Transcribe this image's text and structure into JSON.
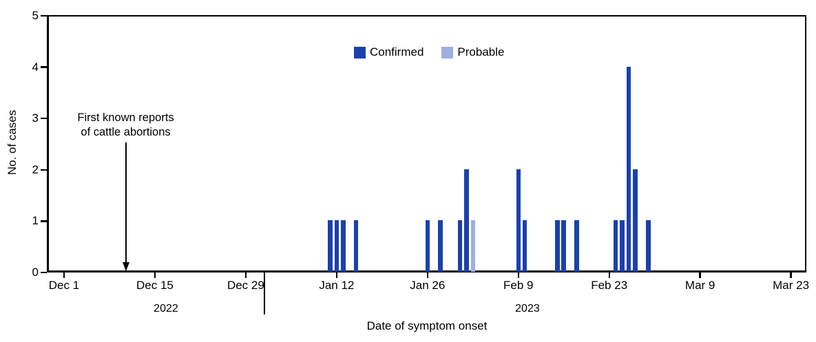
{
  "chart_data": {
    "type": "bar",
    "xlabel": "Date of symptom onset",
    "ylabel": "No. of cases",
    "ylim": [
      0,
      5
    ],
    "yticks": [
      0,
      1,
      2,
      3,
      4,
      5
    ],
    "xlim_days": [
      -2.7,
      114.4
    ],
    "grid": "off",
    "legend_position": "top-center",
    "x_axis": {
      "unit": "days since Dec 1, 2022",
      "ticks": [
        {
          "label": "Dec 1",
          "day": 0
        },
        {
          "label": "Dec 15",
          "day": 14
        },
        {
          "label": "Dec 29",
          "day": 28
        },
        {
          "label": "Jan 12",
          "day": 42
        },
        {
          "label": "Jan 26",
          "day": 56
        },
        {
          "label": "Feb 9",
          "day": 70
        },
        {
          "label": "Feb 23",
          "day": 84
        },
        {
          "label": "Mar 9",
          "day": 98
        },
        {
          "label": "Mar 23",
          "day": 112
        }
      ]
    },
    "series": [
      {
        "name": "Confirmed",
        "color": "#1b40ae",
        "points": [
          {
            "date": "Jan 11",
            "day": 41,
            "cases": 1
          },
          {
            "date": "Jan 12",
            "day": 42,
            "cases": 1
          },
          {
            "date": "Jan 13",
            "day": 43,
            "cases": 1
          },
          {
            "date": "Jan 15",
            "day": 45,
            "cases": 1
          },
          {
            "date": "Jan 26",
            "day": 56,
            "cases": 1
          },
          {
            "date": "Jan 28",
            "day": 58,
            "cases": 1
          },
          {
            "date": "Jan 31",
            "day": 61,
            "cases": 1
          },
          {
            "date": "Feb 1",
            "day": 62,
            "cases": 2
          },
          {
            "date": "Feb 9",
            "day": 70,
            "cases": 2
          },
          {
            "date": "Feb 10",
            "day": 71,
            "cases": 1
          },
          {
            "date": "Feb 15",
            "day": 76,
            "cases": 1
          },
          {
            "date": "Feb 16",
            "day": 77,
            "cases": 1
          },
          {
            "date": "Feb 18",
            "day": 79,
            "cases": 1
          },
          {
            "date": "Feb 24",
            "day": 85,
            "cases": 1
          },
          {
            "date": "Feb 25",
            "day": 86,
            "cases": 1
          },
          {
            "date": "Feb 26",
            "day": 87,
            "cases": 4
          },
          {
            "date": "Feb 27",
            "day": 88,
            "cases": 2
          },
          {
            "date": "Mar 1",
            "day": 90,
            "cases": 1
          }
        ]
      },
      {
        "name": "Probable",
        "color": "#9fafdf",
        "points": [
          {
            "date": "Feb 2",
            "day": 63,
            "cases": 1
          }
        ]
      }
    ],
    "annotation": {
      "lines": [
        "First known reports",
        "of cattle abortions"
      ],
      "arrow_day": 9.5
    },
    "year_labels": [
      {
        "label": "2022",
        "anchor_day": 15.7
      },
      {
        "label": "2023",
        "anchor_day": 71.4
      }
    ],
    "year_divider_day": 30.9
  }
}
